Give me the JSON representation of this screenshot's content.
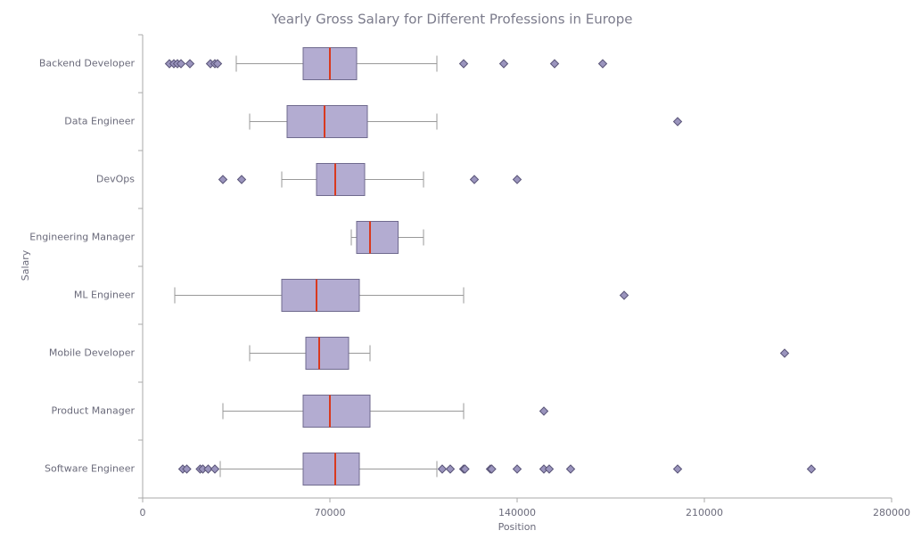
{
  "chart_data": {
    "type": "box",
    "title": "Yearly Gross Salary for Different Professions in Europe",
    "x_label": "Position",
    "y_label": "Salary",
    "categories": [
      "Backend Developer",
      "Data Engineer",
      "DevOps",
      "Engineering Manager",
      "ML Engineer",
      "Mobile Developer",
      "Product Manager",
      "Software Engineer"
    ],
    "boxes": [
      {
        "low": 35000,
        "q1": 60000,
        "median": 70000,
        "q3": 80000,
        "high": 110000,
        "outliers": [
          10000,
          11667,
          13000,
          14333,
          17667,
          25333,
          27000,
          28000,
          120000,
          135000,
          154000,
          172000
        ]
      },
      {
        "low": 40000,
        "q1": 54000,
        "median": 68000,
        "q3": 84000,
        "high": 110000,
        "outliers": [
          200000
        ]
      },
      {
        "low": 52000,
        "q1": 65000,
        "median": 72000,
        "q3": 83000,
        "high": 105000,
        "outliers": [
          30000,
          37000,
          124000,
          140000
        ]
      },
      {
        "low": 78000,
        "q1": 80000,
        "median": 85000,
        "q3": 95500,
        "high": 105000,
        "outliers": []
      },
      {
        "low": 12000,
        "q1": 52000,
        "median": 65000,
        "q3": 81000,
        "high": 120000,
        "outliers": [
          180000
        ]
      },
      {
        "low": 40000,
        "q1": 61000,
        "median": 66000,
        "q3": 77000,
        "high": 85000,
        "outliers": [
          240000
        ]
      },
      {
        "low": 30000,
        "q1": 60000,
        "median": 70000,
        "q3": 85000,
        "high": 120000,
        "outliers": [
          150000
        ]
      },
      {
        "low": 29000,
        "q1": 60000,
        "median": 72000,
        "q3": 81000,
        "high": 110000,
        "outliers": [
          15000,
          16500,
          21500,
          22500,
          24500,
          27000,
          112000,
          115000,
          120000,
          120500,
          130000,
          130500,
          140000,
          150000,
          152000,
          160000,
          200000,
          250000
        ]
      }
    ],
    "box_color": "#b3acd1",
    "median_color": "#d9391e",
    "outlier_color": "#9a94bd",
    "xlim": [
      0,
      280000
    ],
    "xticks": [
      0,
      70000,
      140000,
      210000,
      280000
    ]
  }
}
